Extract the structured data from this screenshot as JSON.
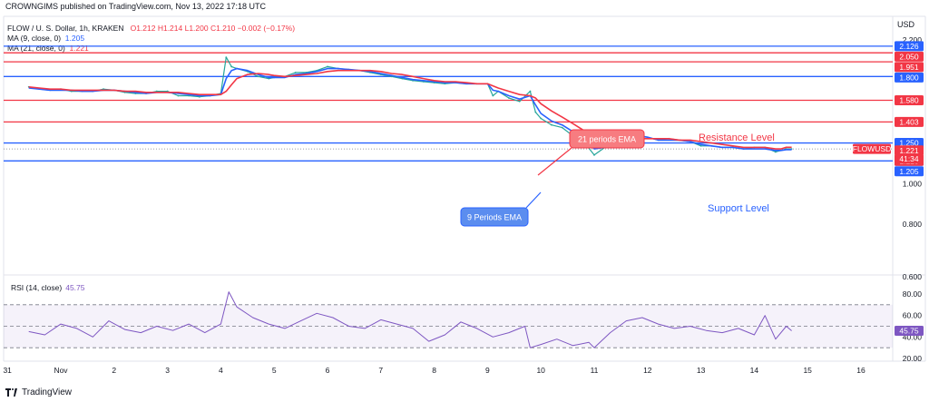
{
  "publisher_line": "CROWNGIMS published on TradingView.com, Nov 13, 2022 17:18 UTC",
  "symbol_line": {
    "name": "FLOW / U. S. Dollar, 1h, KRAKEN",
    "ohlc": "O1.212  H1.214  L1.200  C1.210  −0.002 (−0.17%)"
  },
  "ma9": {
    "label": "MA (9, close, 0)",
    "value": "1.205",
    "color": "#2962ff"
  },
  "ma21": {
    "label": "MA (21, close, 0)",
    "value": "1.221",
    "color": "#f23645"
  },
  "currency": "USD",
  "rsi_label": {
    "label": "RSI (14, close)",
    "value": "45.75"
  },
  "annotations": {
    "ema21": "21 periods EMA",
    "ema9": "9 Periods EMA",
    "resistance": "Resistance Level",
    "support": "Support Level"
  },
  "footer": "TradingView",
  "chart_data": [
    {
      "type": "line",
      "title": "FLOW / U. S. Dollar, 1h, KRAKEN",
      "x_ticks": [
        "31",
        "Nov",
        "2",
        "3",
        "4",
        "5",
        "6",
        "7",
        "8",
        "9",
        "10",
        "11",
        "12",
        "13",
        "14",
        "15",
        "16"
      ],
      "y_ticks": [
        "2.200",
        "1.000",
        "0.800",
        "0.600"
      ],
      "ylim": [
        0.6,
        2.2
      ],
      "y_scale": "log",
      "horizontal_levels": [
        {
          "value": 2.126,
          "label": "2.126",
          "color": "#2962ff"
        },
        {
          "value": 2.05,
          "label": "2.050",
          "color": "#f23645"
        },
        {
          "value": 1.951,
          "label": "1.951",
          "color": "#f23645"
        },
        {
          "value": 1.8,
          "label": "1.800",
          "color": "#2962ff"
        },
        {
          "value": 1.58,
          "label": "1.580",
          "color": "#f23645"
        },
        {
          "value": 1.403,
          "label": "1.403",
          "color": "#f23645"
        },
        {
          "value": 1.25,
          "label": "1.250",
          "color": "#2962ff"
        },
        {
          "value": 1.133,
          "label": "1.133",
          "color": "#2962ff"
        }
      ],
      "price_tags": [
        {
          "value": 1.221,
          "label": "1.221",
          "color": "#f23645"
        },
        {
          "value": 1.21,
          "label": "1.210",
          "color": "#f23645"
        },
        {
          "value": 1.205,
          "label": "1.205",
          "color": "#2962ff"
        }
      ],
      "symbol_tag": "FLOWUSD",
      "countdown": "41:34",
      "x": [
        -0.6,
        -0.4,
        -0.2,
        0.0,
        0.2,
        0.4,
        0.6,
        0.8,
        1.0,
        1.2,
        1.4,
        1.6,
        1.8,
        2.0,
        2.2,
        2.4,
        2.6,
        2.8,
        3.0,
        3.1,
        3.2,
        3.3,
        3.5,
        3.7,
        3.9,
        4.0,
        4.2,
        4.4,
        4.6,
        4.8,
        5.0,
        5.2,
        5.4,
        5.6,
        5.8,
        6.0,
        6.2,
        6.4,
        6.6,
        6.8,
        7.0,
        7.2,
        7.4,
        7.6,
        7.8,
        8.0,
        8.1,
        8.2,
        8.4,
        8.6,
        8.8,
        8.9,
        9.0,
        9.2,
        9.4,
        9.6,
        9.8,
        10.0,
        10.2,
        10.4,
        10.6,
        10.8,
        11.0,
        11.2,
        11.4,
        11.6,
        11.8,
        12.0,
        12.2,
        12.4,
        12.6,
        12.8,
        13.0,
        13.2,
        13.4,
        13.5,
        13.6,
        13.7
      ],
      "series": [
        {
          "name": "FLOWUSD",
          "values": [
            1.7,
            1.68,
            1.67,
            1.68,
            1.66,
            1.66,
            1.66,
            1.68,
            1.67,
            1.65,
            1.64,
            1.64,
            1.66,
            1.66,
            1.62,
            1.62,
            1.61,
            1.62,
            1.64,
            2.0,
            1.9,
            1.88,
            1.85,
            1.8,
            1.78,
            1.79,
            1.8,
            1.84,
            1.84,
            1.86,
            1.9,
            1.88,
            1.87,
            1.86,
            1.84,
            1.82,
            1.8,
            1.78,
            1.76,
            1.75,
            1.74,
            1.73,
            1.74,
            1.73,
            1.73,
            1.73,
            1.62,
            1.66,
            1.6,
            1.57,
            1.66,
            1.48,
            1.43,
            1.38,
            1.36,
            1.3,
            1.26,
            1.17,
            1.22,
            1.25,
            1.28,
            1.31,
            1.29,
            1.27,
            1.28,
            1.27,
            1.26,
            1.23,
            1.23,
            1.22,
            1.22,
            1.21,
            1.22,
            1.22,
            1.19,
            1.2,
            1.21,
            1.21
          ],
          "color": "#26a69a"
        },
        {
          "name": "MA (9, close, 0)",
          "values": [
            1.69,
            1.68,
            1.67,
            1.67,
            1.67,
            1.66,
            1.66,
            1.67,
            1.67,
            1.66,
            1.65,
            1.64,
            1.65,
            1.65,
            1.64,
            1.63,
            1.62,
            1.62,
            1.63,
            1.78,
            1.86,
            1.88,
            1.86,
            1.82,
            1.79,
            1.79,
            1.79,
            1.82,
            1.83,
            1.85,
            1.88,
            1.88,
            1.87,
            1.86,
            1.85,
            1.83,
            1.81,
            1.79,
            1.77,
            1.76,
            1.75,
            1.74,
            1.74,
            1.73,
            1.73,
            1.73,
            1.67,
            1.66,
            1.62,
            1.59,
            1.62,
            1.54,
            1.47,
            1.41,
            1.38,
            1.33,
            1.28,
            1.21,
            1.22,
            1.24,
            1.27,
            1.3,
            1.29,
            1.27,
            1.27,
            1.27,
            1.26,
            1.24,
            1.23,
            1.22,
            1.22,
            1.21,
            1.21,
            1.21,
            1.2,
            1.2,
            1.205,
            1.205
          ],
          "color": "#2962ff"
        },
        {
          "name": "MA (21, close, 0)",
          "values": [
            1.7,
            1.69,
            1.68,
            1.68,
            1.67,
            1.67,
            1.67,
            1.67,
            1.67,
            1.66,
            1.66,
            1.65,
            1.65,
            1.65,
            1.65,
            1.64,
            1.63,
            1.63,
            1.63,
            1.66,
            1.72,
            1.78,
            1.82,
            1.83,
            1.82,
            1.81,
            1.8,
            1.81,
            1.82,
            1.83,
            1.85,
            1.86,
            1.86,
            1.86,
            1.86,
            1.85,
            1.83,
            1.82,
            1.8,
            1.78,
            1.76,
            1.75,
            1.75,
            1.74,
            1.73,
            1.73,
            1.71,
            1.69,
            1.66,
            1.63,
            1.62,
            1.6,
            1.55,
            1.49,
            1.44,
            1.39,
            1.34,
            1.28,
            1.26,
            1.26,
            1.27,
            1.28,
            1.28,
            1.28,
            1.28,
            1.27,
            1.27,
            1.26,
            1.25,
            1.24,
            1.23,
            1.22,
            1.22,
            1.22,
            1.21,
            1.21,
            1.221,
            1.221
          ],
          "color": "#f23645"
        }
      ]
    },
    {
      "type": "line",
      "title": "RSI (14, close)",
      "y_ticks": [
        "80.00",
        "60.00",
        "40.00",
        "20.00"
      ],
      "ylim": [
        15,
        90
      ],
      "bands": {
        "upper": 70,
        "middle": 50,
        "lower": 30
      },
      "current_value": "45.75",
      "x": [
        -0.6,
        -0.3,
        0.0,
        0.3,
        0.6,
        0.9,
        1.2,
        1.5,
        1.8,
        2.1,
        2.4,
        2.7,
        3.0,
        3.15,
        3.3,
        3.6,
        3.9,
        4.2,
        4.5,
        4.8,
        5.1,
        5.4,
        5.7,
        6.0,
        6.3,
        6.6,
        6.9,
        7.2,
        7.5,
        7.8,
        8.1,
        8.4,
        8.7,
        8.8,
        9.0,
        9.3,
        9.6,
        9.9,
        10.0,
        10.3,
        10.6,
        10.9,
        11.2,
        11.5,
        11.8,
        12.1,
        12.4,
        12.7,
        13.0,
        13.2,
        13.4,
        13.6,
        13.7
      ],
      "series": [
        {
          "name": "RSI",
          "values": [
            45,
            42,
            52,
            48,
            40,
            55,
            47,
            44,
            50,
            46,
            52,
            44,
            52,
            82,
            68,
            58,
            52,
            48,
            55,
            62,
            58,
            50,
            48,
            56,
            52,
            48,
            36,
            42,
            54,
            48,
            40,
            44,
            50,
            30,
            33,
            38,
            32,
            35,
            30,
            44,
            55,
            58,
            52,
            48,
            50,
            46,
            44,
            48,
            42,
            60,
            38,
            50,
            45.75
          ],
          "color": "#7e57c2"
        }
      ]
    }
  ]
}
